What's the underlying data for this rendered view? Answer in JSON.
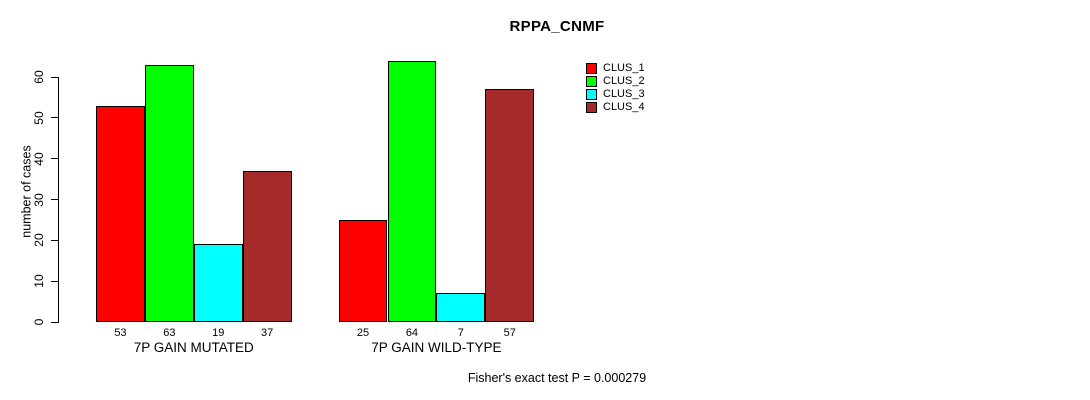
{
  "header": {
    "title": "RPPA_CNMF"
  },
  "footer": {
    "text": "Fisher's exact test P = 0.000279"
  },
  "y_axis": {
    "ticks": [
      0,
      10,
      20,
      30,
      40,
      50,
      60
    ]
  },
  "chart_data": {
    "type": "bar",
    "title": "RPPA_CNMF",
    "categories": [
      "7P GAIN MUTATED",
      "7P GAIN WILD-TYPE"
    ],
    "series": [
      {
        "name": "CLUS_1",
        "color": "#FF0000",
        "values": [
          53,
          25
        ]
      },
      {
        "name": "CLUS_2",
        "color": "#00FF00",
        "values": [
          63,
          64
        ]
      },
      {
        "name": "CLUS_3",
        "color": "#00FFFF",
        "values": [
          19,
          7
        ]
      },
      {
        "name": "CLUS_4",
        "color": "#A52A2A",
        "values": [
          37,
          57
        ]
      }
    ],
    "xlabel": "",
    "ylabel": "number of cases",
    "ylim": [
      0,
      60
    ],
    "grid": false,
    "legend_position": "right",
    "bar_value_labels_shown": true,
    "annotation": "Fisher's exact test P = 0.000279"
  }
}
